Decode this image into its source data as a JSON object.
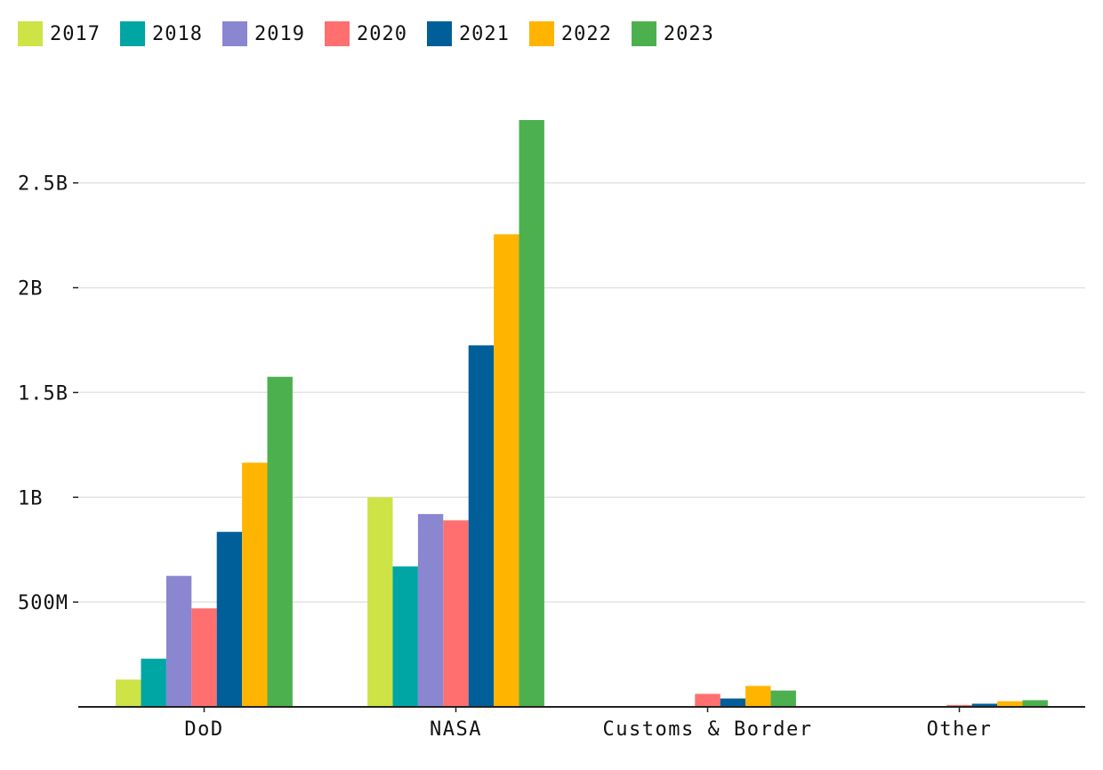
{
  "chart_data": {
    "type": "bar",
    "categories": [
      "DoD",
      "NASA",
      "Customs & Border",
      "Other"
    ],
    "series": [
      {
        "name": "2017",
        "color": "#cde346",
        "values": [
          130000000,
          1000000000,
          0,
          0
        ]
      },
      {
        "name": "2018",
        "color": "#00a6a4",
        "values": [
          230000000,
          670000000,
          0,
          0
        ]
      },
      {
        "name": "2019",
        "color": "#8b86d0",
        "values": [
          625000000,
          920000000,
          0,
          4000000
        ]
      },
      {
        "name": "2020",
        "color": "#ff6f6f",
        "values": [
          470000000,
          890000000,
          62000000,
          9000000
        ]
      },
      {
        "name": "2021",
        "color": "#005f99",
        "values": [
          835000000,
          1725000000,
          40000000,
          15000000
        ]
      },
      {
        "name": "2022",
        "color": "#ffb400",
        "values": [
          1165000000,
          2255000000,
          100000000,
          27000000
        ]
      },
      {
        "name": "2023",
        "color": "#4db04f",
        "values": [
          1575000000,
          2800000000,
          78000000,
          32000000
        ]
      }
    ],
    "yticks": [
      {
        "value": 500000000,
        "label": "500M"
      },
      {
        "value": 1000000000,
        "label": "1B"
      },
      {
        "value": 1500000000,
        "label": "1.5B"
      },
      {
        "value": 2000000000,
        "label": "2B"
      },
      {
        "value": 2500000000,
        "label": "2.5B"
      }
    ],
    "ylim": [
      0,
      2800000000
    ],
    "grid": true,
    "legend_position": "top-left",
    "title": "",
    "xlabel": "",
    "ylabel": ""
  }
}
